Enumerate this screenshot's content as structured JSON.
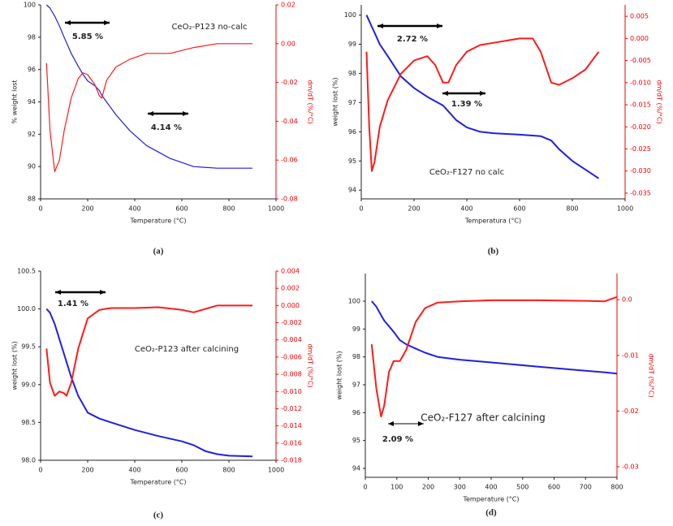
{
  "chart_data": [
    {
      "type": "line",
      "caption": "(a)",
      "x_label": "Temperature (°C)",
      "y_label": "% weight lost",
      "y2_label": "dm/dT (%/°C)",
      "annotations": [
        "5.85 %",
        "CeO₂-P123 no-calc",
        "4.14 %"
      ],
      "x": [
        25,
        40,
        60,
        80,
        100,
        130,
        160,
        180,
        200,
        230,
        250,
        260,
        280,
        320,
        380,
        450,
        550,
        650,
        750,
        900
      ],
      "series": [
        {
          "name": "weight",
          "color": "#1f1fe6",
          "axis": "y",
          "values": [
            100,
            99.8,
            99.3,
            98.7,
            98,
            97,
            96.2,
            95.7,
            95.3,
            95,
            94.7,
            94.4,
            94.0,
            93.2,
            92.2,
            91.3,
            90.5,
            90.0,
            89.9,
            89.9
          ]
        },
        {
          "name": "dm/dT",
          "color": "#ff1a1a",
          "axis": "y2",
          "values": [
            -0.01,
            -0.045,
            -0.066,
            -0.06,
            -0.045,
            -0.028,
            -0.018,
            -0.015,
            -0.016,
            -0.021,
            -0.027,
            -0.028,
            -0.019,
            -0.012,
            -0.008,
            -0.005,
            -0.005,
            -0.002,
            0,
            0
          ]
        }
      ],
      "xlim": [
        0,
        1000
      ],
      "xticks": [
        0,
        200,
        400,
        600,
        800,
        1000
      ],
      "ylim": [
        88,
        100
      ],
      "yticks": [
        88,
        90,
        92,
        94,
        96,
        98,
        100
      ],
      "y2lim": [
        -0.08,
        0.02
      ],
      "y2ticks": [
        -0.08,
        -0.06,
        -0.04,
        -0.02,
        {
          "value": 0,
          "label": "0.00"
        },
        0.02
      ]
    },
    {
      "type": "line",
      "caption": "(b)",
      "x_label": "Temperatura (°C)",
      "y_label": "weight lost (%)",
      "y2_label": "dm/dT (%/°C)",
      "annotations": [
        "2.72 %",
        "1.39 %",
        "CeO₂-F127 no calc"
      ],
      "x": [
        20,
        30,
        40,
        50,
        70,
        100,
        150,
        200,
        250,
        280,
        310,
        330,
        360,
        400,
        450,
        500,
        600,
        650,
        680,
        720,
        750,
        800,
        850,
        900
      ],
      "series": [
        {
          "name": "weight",
          "color": "#1f1fe6",
          "axis": "y",
          "values": [
            100,
            99.8,
            99.6,
            99.4,
            99.0,
            98.6,
            97.9,
            97.5,
            97.2,
            97.05,
            96.9,
            96.7,
            96.4,
            96.15,
            96.0,
            95.95,
            95.9,
            95.87,
            95.85,
            95.7,
            95.4,
            95.0,
            94.7,
            94.4
          ]
        },
        {
          "name": "dm/dT",
          "color": "#ff1a1a",
          "axis": "y2",
          "values": [
            -0.003,
            -0.02,
            -0.03,
            -0.028,
            -0.02,
            -0.014,
            -0.008,
            -0.005,
            -0.004,
            -0.006,
            -0.01,
            -0.01,
            -0.006,
            -0.003,
            -0.0015,
            -0.001,
            0,
            0,
            -0.003,
            -0.01,
            -0.0105,
            -0.009,
            -0.007,
            -0.003
          ]
        }
      ],
      "xlim": [
        0,
        1000
      ],
      "xticks": [
        0,
        200,
        400,
        600,
        800,
        1000
      ],
      "ylim": [
        93.7,
        100.35
      ],
      "yticks": [
        94,
        95,
        96,
        97,
        98,
        99,
        100
      ],
      "y2lim": [
        -0.0363,
        0.0076
      ],
      "y2ticks": [
        0.005,
        {
          "value": 0,
          "label": "0.000"
        },
        -0.005,
        {
          "value": -0.01,
          "label": "-0.010"
        },
        -0.015,
        {
          "value": -0.02,
          "label": "-0.020"
        },
        -0.025,
        {
          "value": -0.03,
          "label": "-0.030"
        },
        -0.035
      ]
    },
    {
      "type": "line",
      "caption": "(c)",
      "x_label": "Temperature (°C)",
      "y_label": "weight lost (%)",
      "y2_label": "dm/dT (%/°C)",
      "annotations": [
        "1.41 %",
        "CeO₂-P123 after calcining"
      ],
      "x": [
        25,
        40,
        60,
        80,
        100,
        110,
        130,
        160,
        200,
        250,
        300,
        400,
        500,
        600,
        650,
        700,
        750,
        800,
        900
      ],
      "series": [
        {
          "name": "weight",
          "color": "#1f1fe6",
          "axis": "y",
          "values": [
            100,
            99.95,
            99.8,
            99.6,
            99.4,
            99.3,
            99.1,
            98.85,
            98.63,
            98.55,
            98.5,
            98.4,
            98.32,
            98.25,
            98.2,
            98.12,
            98.08,
            98.06,
            98.05
          ]
        },
        {
          "name": "dm/dT",
          "color": "#ff1a1a",
          "axis": "y2",
          "values": [
            -0.005,
            -0.009,
            -0.0105,
            -0.01,
            -0.0102,
            -0.0105,
            -0.009,
            -0.005,
            -0.0015,
            -0.0005,
            -0.0003,
            -0.0003,
            -0.0002,
            -0.0005,
            -0.0008,
            -0.0004,
            0,
            0,
            0
          ]
        }
      ],
      "xlim": [
        0,
        1000
      ],
      "xticks": [
        0,
        200,
        400,
        600,
        800,
        1000
      ],
      "ylim": [
        98,
        100.5
      ],
      "yticks": [
        {
          "value": 98,
          "label": "98.0"
        },
        98.5,
        {
          "value": 99,
          "label": "99.0"
        },
        99.5,
        {
          "value": 100,
          "label": "100.0"
        },
        100.5
      ],
      "y2lim": [
        -0.018,
        0.004
      ],
      "y2ticks": [
        0.004,
        0.002,
        {
          "value": 0,
          "label": "0.000"
        },
        -0.002,
        -0.004,
        -0.006,
        -0.008,
        {
          "value": -0.01,
          "label": "-0.010"
        },
        -0.012,
        -0.014,
        -0.016,
        -0.018
      ]
    },
    {
      "type": "line",
      "caption": "(d)",
      "x_label": "Temperature (°C)",
      "y_label": "weight lost (%)",
      "y2_label": "dm/dT (%/°C)",
      "annotations": [
        "CeO₂-F127 after calcining",
        "2.09 %"
      ],
      "x": [
        20,
        35,
        50,
        60,
        75,
        90,
        110,
        130,
        160,
        190,
        230,
        300,
        400,
        550,
        700,
        760,
        800
      ],
      "series": [
        {
          "name": "weight",
          "color": "#1f1fe6",
          "axis": "y",
          "values": [
            100,
            99.8,
            99.5,
            99.3,
            99.1,
            98.9,
            98.6,
            98.45,
            98.3,
            98.15,
            98.0,
            97.9,
            97.8,
            97.65,
            97.5,
            97.45,
            97.4
          ]
        },
        {
          "name": "dm/dT",
          "color": "#ff1a1a",
          "axis": "y2",
          "values": [
            -0.008,
            -0.016,
            -0.021,
            -0.019,
            -0.013,
            -0.011,
            -0.011,
            -0.009,
            -0.004,
            -0.0015,
            -0.0005,
            -0.0003,
            -0.0001,
            -0.0001,
            -0.0002,
            -0.0003,
            0.0005
          ]
        }
      ],
      "xlim": [
        0,
        800
      ],
      "xticks": [
        0,
        100,
        200,
        300,
        400,
        500,
        600,
        700,
        800
      ],
      "ylim": [
        93.68,
        100.99
      ],
      "yticks": [
        94,
        95,
        96,
        97,
        98,
        99,
        100
      ],
      "y2lim": [
        -0.0319,
        0.0047
      ],
      "y2ticks": [
        {
          "value": 0,
          "label": "0.0"
        },
        -0.01,
        -0.02,
        -0.03
      ]
    }
  ]
}
